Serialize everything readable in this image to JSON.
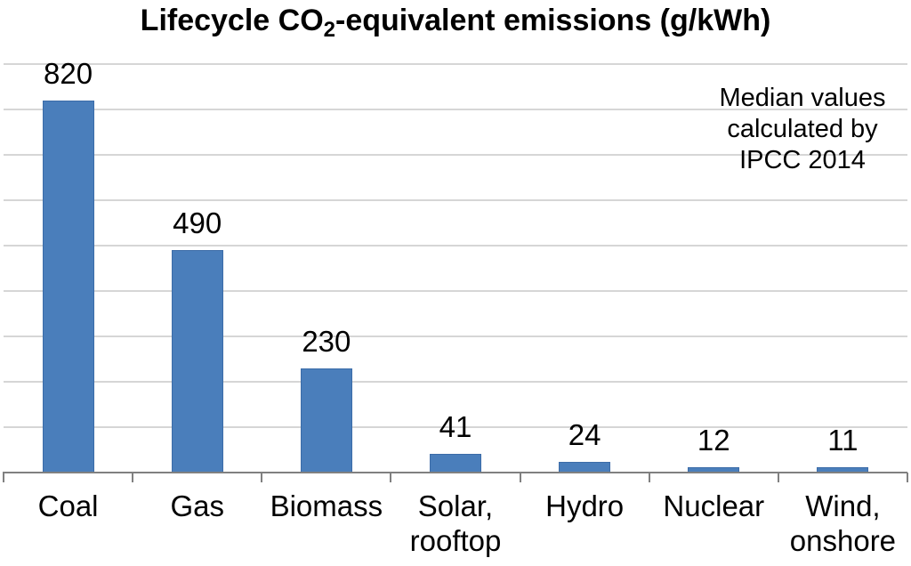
{
  "title": {
    "prefix": "Lifecycle CO",
    "subscript": "2",
    "suffix": "-equivalent emissions (g/kWh)"
  },
  "annotation": {
    "line1": "Median values",
    "line2": "calculated by",
    "line3": "IPCC 2014"
  },
  "chart_data": {
    "type": "bar",
    "title": "Lifecycle CO2-equivalent emissions (g/kWh)",
    "annotation": "Median values calculated by IPCC 2014",
    "categories": [
      "Coal",
      "Gas",
      "Biomass",
      "Solar, rooftop",
      "Hydro",
      "Nuclear",
      "Wind, onshore"
    ],
    "category_label_lines": [
      [
        "Coal"
      ],
      [
        "Gas"
      ],
      [
        "Biomass"
      ],
      [
        "Solar,",
        "rooftop"
      ],
      [
        "Hydro"
      ],
      [
        "Nuclear"
      ],
      [
        "Wind,",
        "onshore"
      ]
    ],
    "values": [
      820,
      490,
      230,
      41,
      24,
      12,
      11
    ],
    "value_labels": [
      "820",
      "490",
      "230",
      "41",
      "24",
      "12",
      "11"
    ],
    "xlabel": "",
    "ylabel": "",
    "ylim": [
      0,
      900
    ],
    "gridline_interval": 100,
    "grid": true,
    "legend_position": "none",
    "y_tick_labels_shown": false
  },
  "colors": {
    "bar_fill": "#4a7ebb",
    "bar_border": "#3c6ca8",
    "gridline": "#d6d6d6",
    "axis": "#808080",
    "text": "#000000",
    "background": "#ffffff"
  }
}
